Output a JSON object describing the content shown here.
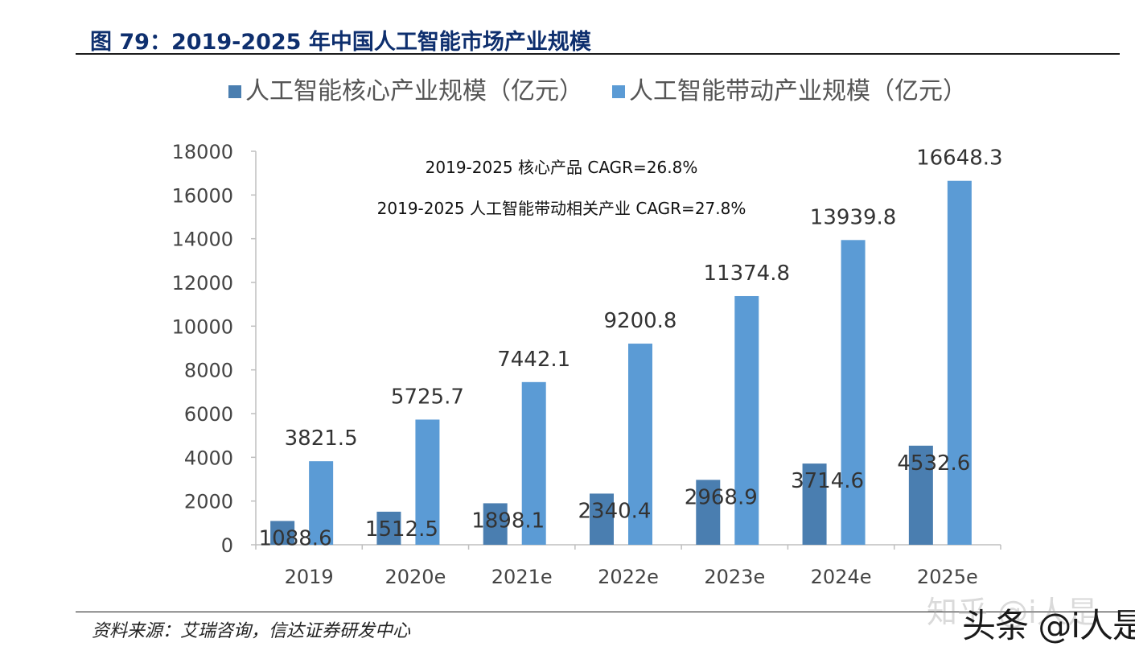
{
  "figure": {
    "title": "图 79：2019-2025 年中国人工智能市场产业规模",
    "source": "资料来源：艾瑞咨询，信达证券研发中心"
  },
  "watermarks": {
    "zhihu": "知乎 @i人是",
    "toutiao": "头条 @i人是"
  },
  "colors": {
    "core": "#4a7eb0",
    "driven": "#5b9bd5",
    "title": "#0e2f6e"
  },
  "chart_data": {
    "type": "bar",
    "categories": [
      "2019",
      "2020e",
      "2021e",
      "2022e",
      "2023e",
      "2024e",
      "2025e"
    ],
    "series": [
      {
        "name": "人工智能核心产业规模（亿元）",
        "values": [
          1088.6,
          1512.5,
          1898.1,
          2340.4,
          2968.9,
          3714.6,
          4532.6
        ],
        "color": "#4a7eb0"
      },
      {
        "name": "人工智能带动产业规模（亿元）",
        "values": [
          3821.5,
          5725.7,
          7442.1,
          9200.8,
          11374.8,
          13939.8,
          16648.3
        ],
        "color": "#5b9bd5"
      }
    ],
    "data_labels": {
      "core": [
        "1088.6",
        "1512.5",
        "1898.1",
        "2340.4",
        "2968.9",
        "3714.6",
        "4532.6"
      ],
      "driven": [
        "3821.5",
        "5725.7",
        "7442.1",
        "9200.8",
        "11374.8",
        "13939.8",
        "16648.3"
      ]
    },
    "y_ticks": [
      "0",
      "2000",
      "4000",
      "6000",
      "8000",
      "10000",
      "12000",
      "14000",
      "16000",
      "18000"
    ],
    "ylim": [
      0,
      18000
    ],
    "annotations": [
      "2019-2025 核心产品 CAGR=26.8%",
      "2019-2025 人工智能带动相关产业 CAGR=27.8%"
    ],
    "legend_position": "top",
    "grid": false,
    "xlabel": "",
    "ylabel": ""
  }
}
